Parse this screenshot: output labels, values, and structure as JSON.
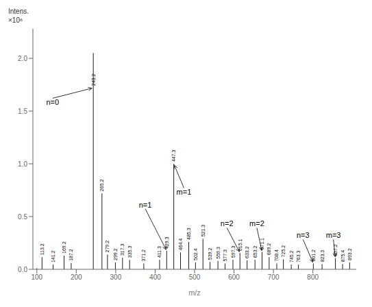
{
  "chart_data": {
    "type": "stem",
    "xlabel": "m/z",
    "ylabel": "Intens.",
    "ylabel_unit": "×10⁶",
    "color": "black",
    "grid": false,
    "xlim": [
      90,
      910
    ],
    "ylim": [
      0.0,
      2.28
    ],
    "xticks": [
      100,
      200,
      300,
      400,
      500,
      600,
      700,
      800
    ],
    "yticks": [
      {
        "value": 0,
        "label": "0.0"
      },
      0.5,
      {
        "value": 1,
        "label": "1.0"
      },
      1.5,
      {
        "value": 2,
        "label": "2.0"
      }
    ],
    "x": [
      100.0,
      113.2,
      141.2,
      169.2,
      187.2,
      243.2,
      265.2,
      279.2,
      299.2,
      317.3,
      335.3,
      371.2,
      411.3,
      429.3,
      447.3,
      464.4,
      485.3,
      502.4,
      521.3,
      539.2,
      559.3,
      577.3,
      597.3,
      615.1,
      633.2,
      653.2,
      671.1,
      689.2,
      708.4,
      725.2,
      745.2,
      763.3,
      801.2,
      823.3,
      857.2,
      875.4,
      893.2
    ],
    "values": [
      0.01,
      0.115,
      0.045,
      0.13,
      0.06,
      2.05,
      0.72,
      0.14,
      0.065,
      0.11,
      0.09,
      0.055,
      0.09,
      0.175,
      1.0,
      0.16,
      0.26,
      0.065,
      0.29,
      0.07,
      0.08,
      0.055,
      0.09,
      0.155,
      0.085,
      0.09,
      0.165,
      0.115,
      0.055,
      0.095,
      0.045,
      0.045,
      0.055,
      0.05,
      0.105,
      0.05,
      0.065
    ],
    "peak_labels": [
      {
        "x": 113.2,
        "y": 0.115,
        "label": "113.2"
      },
      {
        "x": 141.2,
        "y": 0.045,
        "label": "141.2"
      },
      {
        "x": 169.2,
        "y": 0.13,
        "label": "169.2"
      },
      {
        "x": 187.2,
        "y": 0.06,
        "label": "187.2"
      },
      {
        "x": 243.2,
        "y": 1.72,
        "label": "243.2"
      },
      {
        "x": 265.2,
        "y": 0.72,
        "label": "265.2"
      },
      {
        "x": 279.2,
        "y": 0.14,
        "label": "279.2"
      },
      {
        "x": 299.2,
        "y": 0.065,
        "label": "299.2"
      },
      {
        "x": 317.3,
        "y": 0.11,
        "label": "317.3"
      },
      {
        "x": 335.3,
        "y": 0.09,
        "label": "335.3"
      },
      {
        "x": 371.2,
        "y": 0.055,
        "label": "371.2"
      },
      {
        "x": 411.3,
        "y": 0.09,
        "label": "411.3"
      },
      {
        "x": 429.3,
        "y": 0.175,
        "label": "429.3"
      },
      {
        "x": 447.3,
        "y": 1.0,
        "label": "447.3"
      },
      {
        "x": 464.4,
        "y": 0.16,
        "label": "464.4"
      },
      {
        "x": 485.3,
        "y": 0.26,
        "label": "485.3"
      },
      {
        "x": 502.4,
        "y": 0.065,
        "label": "502.4"
      },
      {
        "x": 521.3,
        "y": 0.29,
        "label": "521.3"
      },
      {
        "x": 539.2,
        "y": 0.07,
        "label": "539.2"
      },
      {
        "x": 559.3,
        "y": 0.08,
        "label": "559.3"
      },
      {
        "x": 577.3,
        "y": 0.055,
        "label": "577.3"
      },
      {
        "x": 597.3,
        "y": 0.09,
        "label": "597.3"
      },
      {
        "x": 615.1,
        "y": 0.155,
        "label": "615.1"
      },
      {
        "x": 633.2,
        "y": 0.085,
        "label": "633.2"
      },
      {
        "x": 653.2,
        "y": 0.09,
        "label": "653.2"
      },
      {
        "x": 671.1,
        "y": 0.165,
        "label": "671.1"
      },
      {
        "x": 689.2,
        "y": 0.115,
        "label": "689.2"
      },
      {
        "x": 708.4,
        "y": 0.055,
        "label": "708.4"
      },
      {
        "x": 725.2,
        "y": 0.095,
        "label": "725.2"
      },
      {
        "x": 745.2,
        "y": 0.045,
        "label": "745.2"
      },
      {
        "x": 763.3,
        "y": 0.045,
        "label": "763.3"
      },
      {
        "x": 801.2,
        "y": 0.055,
        "label": "801.2"
      },
      {
        "x": 823.3,
        "y": 0.05,
        "label": "823.3"
      },
      {
        "x": 857.2,
        "y": 0.105,
        "label": "857.2"
      },
      {
        "x": 875.4,
        "y": 0.05,
        "label": "875.4"
      },
      {
        "x": 893.2,
        "y": 0.065,
        "label": "893.2"
      }
    ],
    "annotations": [
      {
        "text": "n=0",
        "x": 243.2,
        "y": 1.72,
        "text_x": 140,
        "text_y": 1.55
      },
      {
        "text": "n=1",
        "x": 429.3,
        "y": 0.175,
        "text_x": 375,
        "text_y": 0.58
      },
      {
        "text": "m=1",
        "x": 447.3,
        "y": 1.0,
        "text_x": 473,
        "text_y": 0.7
      },
      {
        "text": "n=2",
        "x": 615.1,
        "y": 0.155,
        "text_x": 582,
        "text_y": 0.4
      },
      {
        "text": "m=2",
        "x": 671.1,
        "y": 0.165,
        "text_x": 658,
        "text_y": 0.4
      },
      {
        "text": "n=3",
        "x": 801.2,
        "y": 0.055,
        "text_x": 775,
        "text_y": 0.29
      },
      {
        "text": "m=3",
        "x": 857.2,
        "y": 0.105,
        "text_x": 852,
        "text_y": 0.29
      }
    ]
  }
}
